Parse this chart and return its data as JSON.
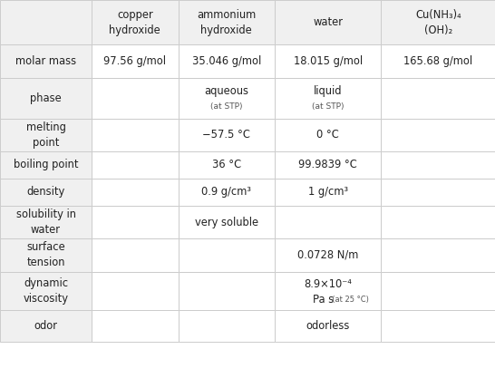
{
  "col_headers": [
    "copper\nhydroxide",
    "ammonium\nhydroxide",
    "water",
    "Cu(NH₃)₄\n(OH)₂"
  ],
  "row_headers": [
    "molar mass",
    "phase",
    "melting\npoint",
    "boiling point",
    "density",
    "solubility in\nwater",
    "surface\ntension",
    "dynamic\nviscosity",
    "odor"
  ],
  "cells": [
    [
      "97.56 g/mol",
      "35.046 g/mol",
      "18.015 g/mol",
      "165.68 g/mol"
    ],
    [
      "",
      "aqueous\n(at STP)",
      "liquid\n(at STP)",
      ""
    ],
    [
      "",
      "−57.5 °C",
      "0 °C",
      ""
    ],
    [
      "",
      "36 °C",
      "99.9839 °C",
      ""
    ],
    [
      "",
      "0.9 g/cm³",
      "1 g/cm³",
      ""
    ],
    [
      "",
      "very soluble",
      "",
      ""
    ],
    [
      "",
      "",
      "0.0728 N/m",
      ""
    ],
    [
      "",
      "",
      "8.9×10⁻⁴\nPa s  (at 25 °C)",
      ""
    ],
    [
      "",
      "",
      "odorless",
      ""
    ]
  ],
  "bg_color": "#ffffff",
  "header_bg": "#f5f5f5",
  "grid_color": "#cccccc",
  "text_color": "#222222",
  "small_text_color": "#555555"
}
